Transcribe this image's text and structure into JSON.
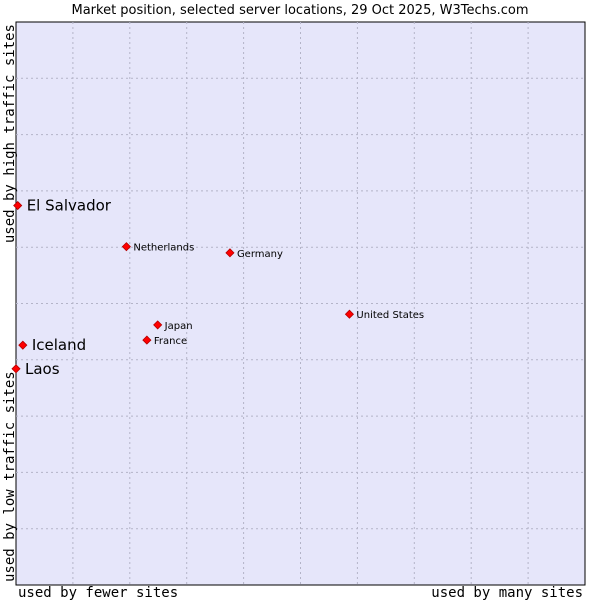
{
  "chart_data": {
    "type": "scatter",
    "title": "Market position, selected server locations, 29 Oct 2025, W3Techs.com",
    "xlabel_left": "used by fewer sites",
    "xlabel_right": "used by many sites",
    "ylabel_bottom": "used by low traffic sites",
    "ylabel_top": "used by high traffic sites",
    "xlim": [
      0,
      100
    ],
    "ylim": [
      0,
      100
    ],
    "grid": true,
    "colors": {
      "plot_bg": "#e6e6fa",
      "marker": "#ff0000",
      "marker_edge": "#b40000",
      "axis": "#000000"
    },
    "points": [
      {
        "name": "El Salvador",
        "x": 0.3,
        "y": 67.4,
        "size": "large"
      },
      {
        "name": "Netherlands",
        "x": 19.4,
        "y": 60.1,
        "size": "small"
      },
      {
        "name": "Germany",
        "x": 37.6,
        "y": 59.0,
        "size": "small"
      },
      {
        "name": "United States",
        "x": 58.6,
        "y": 48.1,
        "size": "small"
      },
      {
        "name": "Japan",
        "x": 24.9,
        "y": 46.2,
        "size": "small"
      },
      {
        "name": "France",
        "x": 23.0,
        "y": 43.5,
        "size": "small"
      },
      {
        "name": "Iceland",
        "x": 1.2,
        "y": 42.6,
        "size": "large"
      },
      {
        "name": "Laos",
        "x": 0.0,
        "y": 38.4,
        "size": "large"
      }
    ]
  }
}
